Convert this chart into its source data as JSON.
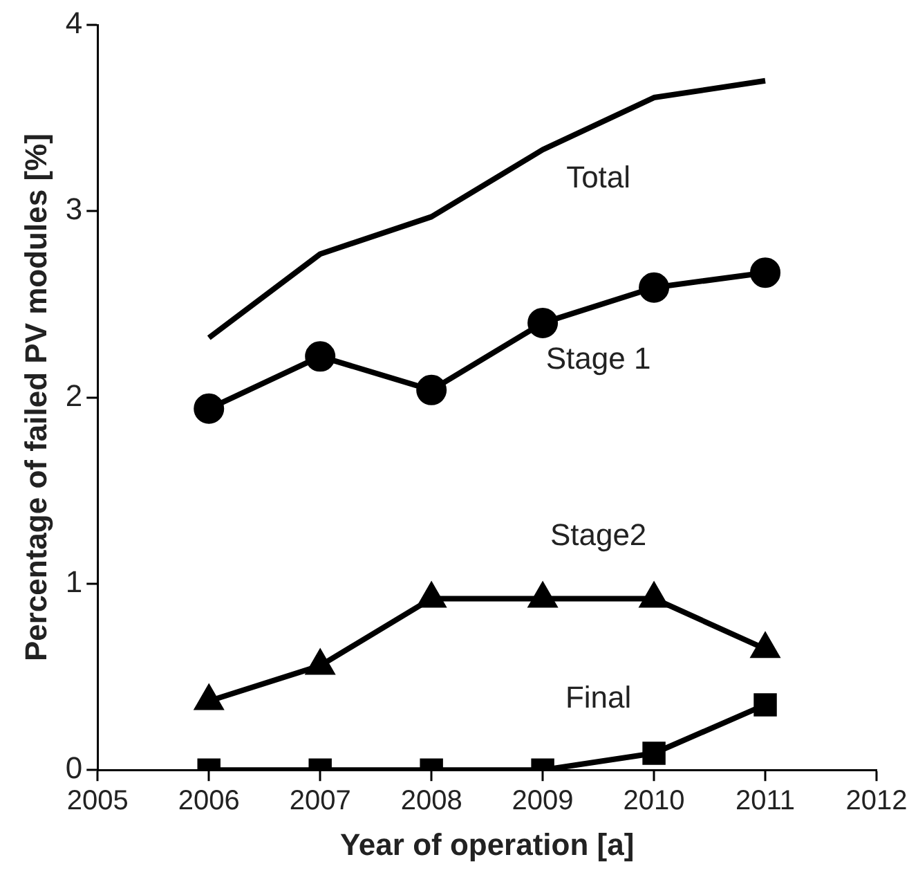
{
  "chart_data": {
    "type": "line",
    "xlabel": "Year of operation [a]",
    "ylabel": "Percentage of failed PV modules [%]",
    "x": [
      2006,
      2007,
      2008,
      2009,
      2010,
      2011
    ],
    "series": [
      {
        "name": "Total",
        "color": "#000000",
        "marker": "none",
        "values": [
          2.32,
          2.77,
          2.97,
          3.33,
          3.61,
          3.7
        ]
      },
      {
        "name": "Stage 1",
        "color": "#000000",
        "marker": "circle",
        "values": [
          1.94,
          2.22,
          2.04,
          2.4,
          2.59,
          2.67
        ]
      },
      {
        "name": "Stage2",
        "color": "#000000",
        "marker": "triangle",
        "values": [
          0.37,
          0.56,
          0.92,
          0.92,
          0.92,
          0.65
        ]
      },
      {
        "name": "Final",
        "color": "#000000",
        "marker": "square",
        "values": [
          0,
          0,
          0,
          0,
          0.09,
          0.35
        ]
      }
    ],
    "xlim": [
      2005,
      2012
    ],
    "xticks": [
      2005,
      2006,
      2007,
      2008,
      2009,
      2010,
      2011,
      2012
    ],
    "ylim": [
      0,
      4
    ],
    "yticks": [
      0,
      1,
      2,
      3,
      4
    ],
    "grid": false,
    "legend": false
  }
}
